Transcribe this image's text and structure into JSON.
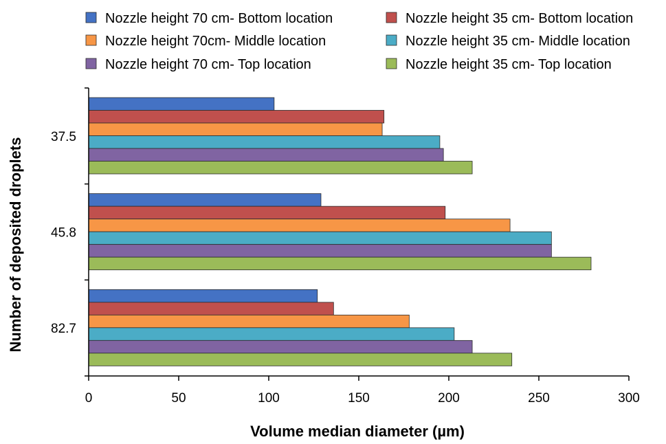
{
  "chart_data": {
    "type": "bar",
    "orientation": "horizontal",
    "title": "",
    "xlabel": "Volume median diameter (µm)",
    "ylabel": "Number of deposited droplets",
    "xlim": [
      0,
      300
    ],
    "xticks": [
      0,
      50,
      100,
      150,
      200,
      250,
      300
    ],
    "grid": false,
    "legend_position": "top",
    "categories": [
      "37.5",
      "45.8",
      "82.7"
    ],
    "series": [
      {
        "name": "Nozzle height 70 cm- Bottom location",
        "color": "#4472C4",
        "values": [
          103,
          129,
          127
        ]
      },
      {
        "name": "Nozzle height 35 cm- Bottom location",
        "color": "#C0504D",
        "values": [
          164,
          198,
          136
        ]
      },
      {
        "name": "Nozzle height 70cm- Middle location",
        "color": "#F79646",
        "values": [
          163,
          234,
          178
        ]
      },
      {
        "name": "Nozzle height 35 cm- Middle location",
        "color": "#4BACC6",
        "values": [
          195,
          257,
          203
        ]
      },
      {
        "name": "Nozzle height 70 cm- Top location",
        "color": "#8064A2",
        "values": [
          197,
          257,
          213
        ]
      },
      {
        "name": "Nozzle height 35 cm- Top location",
        "color": "#9BBB59",
        "values": [
          213,
          279,
          235
        ]
      }
    ]
  }
}
